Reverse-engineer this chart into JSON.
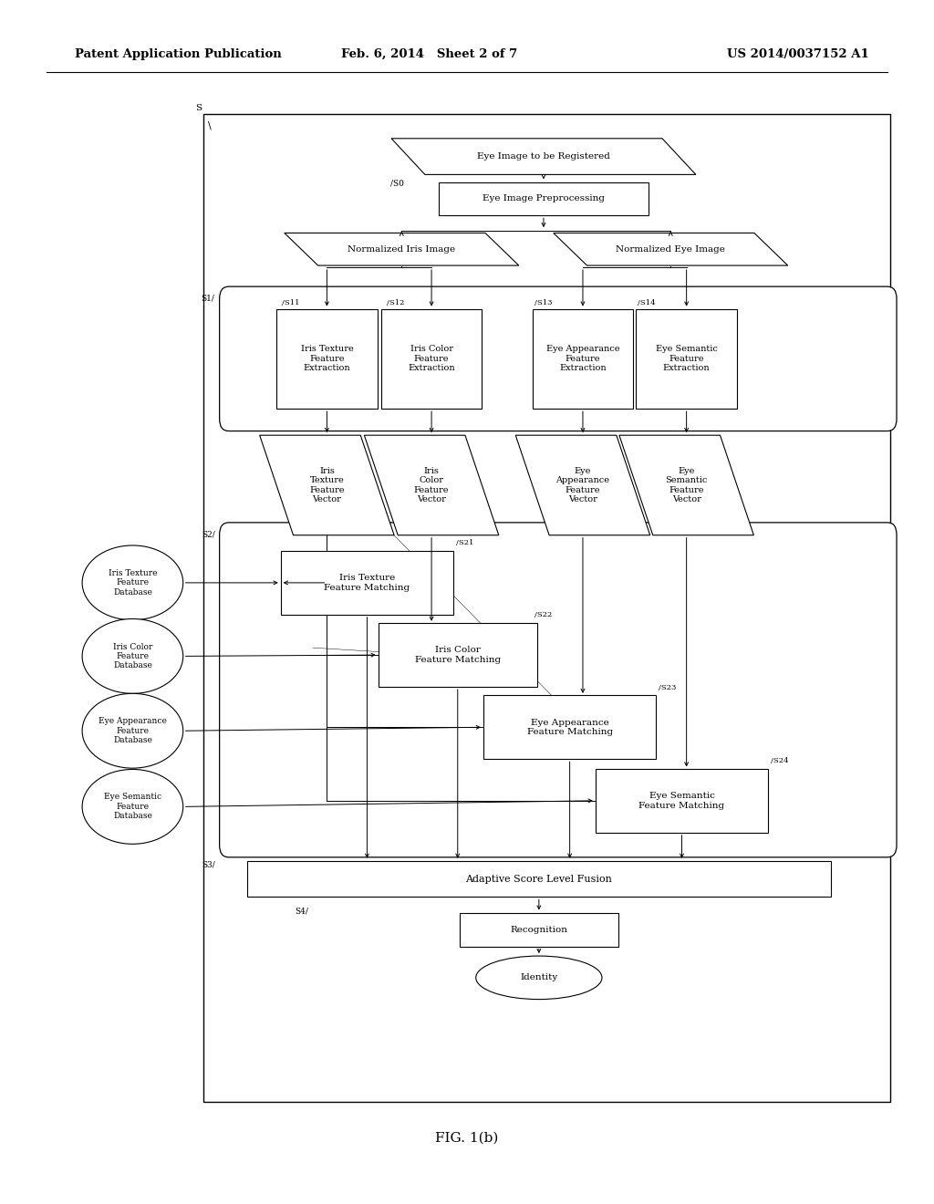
{
  "bg_color": "#ffffff",
  "header_left": "Patent Application Publication",
  "header_mid": "Feb. 6, 2014   Sheet 2 of 7",
  "header_right": "US 2014/0037152 A1",
  "fig_label": "FIG. 1(b)"
}
